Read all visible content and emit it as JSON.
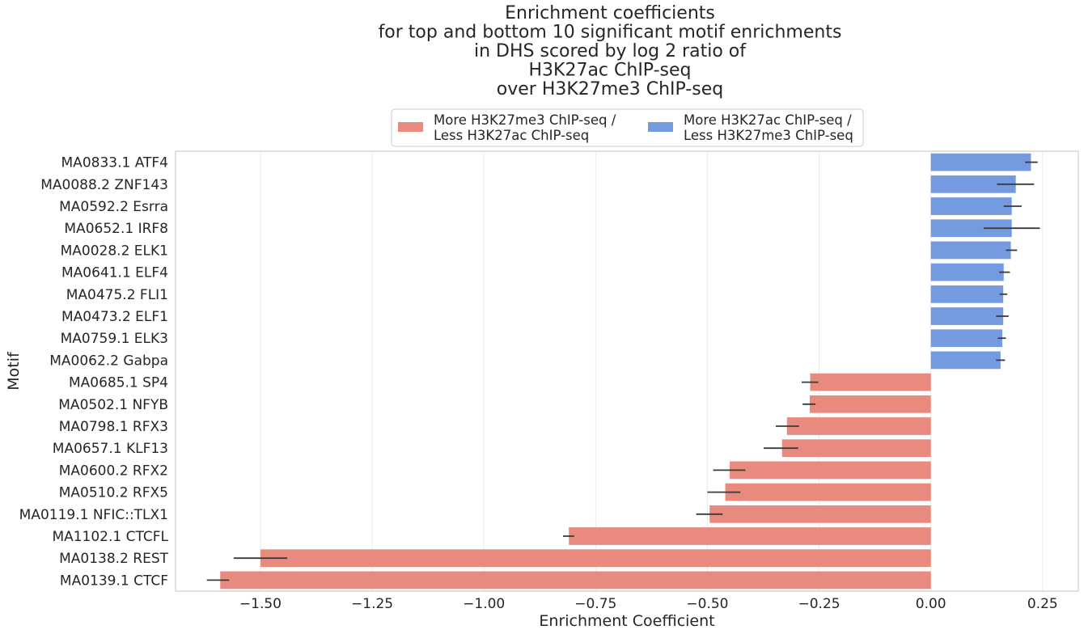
{
  "chart_data": {
    "type": "bar",
    "orientation": "horizontal",
    "title_lines": [
      "Enrichment coefficients",
      "for top and bottom 10 significant motif enrichments",
      "in DHS scored by log 2 ratio of",
      "H3K27ac ChIP-seq",
      "over H3K27me3 ChIP-seq"
    ],
    "xlabel": "Enrichment Coefficient",
    "ylabel": "Motif",
    "xlim": [
      -1.69,
      0.33
    ],
    "xticks": [
      -1.5,
      -1.25,
      -1.0,
      -0.75,
      -0.5,
      -0.25,
      0.0,
      0.25
    ],
    "xtick_labels": [
      "−1.50",
      "−1.25",
      "−1.00",
      "−0.75",
      "−0.50",
      "−0.25",
      "0.00",
      "0.25"
    ],
    "grid": "vertical",
    "legend_position": "top-center",
    "legend": [
      {
        "label_lines": [
          "More H3K27me3 ChIP-seq /",
          " Less H3K27ac ChIP-seq"
        ],
        "color": "#e88b7e"
      },
      {
        "label_lines": [
          "More H3K27ac ChIP-seq /",
          " Less H3K27me3 ChIP-seq"
        ],
        "color": "#749bdf"
      }
    ],
    "colors": {
      "positive": "#749bdf",
      "negative": "#e88b7e",
      "errorbar": "#3a3a3a"
    },
    "categories": [
      "MA0833.1 ATF4",
      "MA0088.2 ZNF143",
      "MA0592.2 Esrra",
      "MA0652.1 IRF8",
      "MA0028.2 ELK1",
      "MA0641.1 ELF4",
      "MA0475.2 FLI1",
      "MA0473.2 ELF1",
      "MA0759.1 ELK3",
      "MA0062.2 Gabpa",
      "MA0685.1 SP4",
      "MA0502.1 NFYB",
      "MA0798.1 RFX3",
      "MA0657.1 KLF13",
      "MA0600.2 RFX2",
      "MA0510.2 RFX5",
      "MA0119.1 NFIC::TLX1",
      "MA1102.1 CTCFL",
      "MA0138.2 REST",
      "MA0139.1 CTCF"
    ],
    "values": [
      0.224,
      0.19,
      0.181,
      0.181,
      0.179,
      0.163,
      0.162,
      0.162,
      0.16,
      0.156,
      -0.27,
      -0.271,
      -0.322,
      -0.333,
      -0.45,
      -0.46,
      -0.495,
      -0.81,
      -1.5,
      -1.59
    ],
    "error_low": [
      0.211,
      0.148,
      0.163,
      0.118,
      0.168,
      0.153,
      0.154,
      0.146,
      0.15,
      0.146,
      -0.289,
      -0.287,
      -0.347,
      -0.374,
      -0.487,
      -0.5,
      -0.525,
      -0.823,
      -1.56,
      -1.62
    ],
    "error_high": [
      0.239,
      0.231,
      0.203,
      0.244,
      0.193,
      0.177,
      0.171,
      0.174,
      0.168,
      0.166,
      -0.252,
      -0.258,
      -0.295,
      -0.297,
      -0.415,
      -0.426,
      -0.466,
      -0.798,
      -1.44,
      -1.57
    ]
  }
}
